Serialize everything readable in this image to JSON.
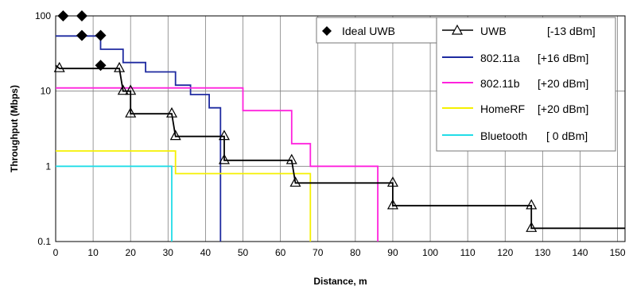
{
  "chart_data": {
    "type": "line",
    "xlabel": "Distance, m",
    "ylabel": "Throughput (Mbps)",
    "x_scale": "linear",
    "y_scale": "log",
    "xlim": [
      0,
      152
    ],
    "ylim": [
      0.1,
      100
    ],
    "x_ticks": [
      "0",
      "10",
      "20",
      "30",
      "40",
      "50",
      "60",
      "70",
      "80",
      "90",
      "100",
      "110",
      "120",
      "130",
      "140",
      "150"
    ],
    "x_tick_values": [
      0,
      10,
      20,
      30,
      40,
      50,
      60,
      70,
      80,
      90,
      100,
      110,
      120,
      130,
      140,
      150
    ],
    "y_ticks": [
      "0.1",
      "1",
      "10",
      "100"
    ],
    "y_tick_values": [
      0.1,
      1,
      10,
      100
    ],
    "grid": true,
    "series": [
      {
        "name": "Ideal UWB",
        "color": "#000000",
        "marker": "diamond",
        "line": false,
        "points": [
          [
            2,
            100
          ],
          [
            7,
            100
          ],
          [
            7,
            55
          ],
          [
            12,
            55
          ],
          [
            12,
            22
          ]
        ]
      },
      {
        "name": "UWB",
        "level": "[-13 dBm]",
        "color": "#000000",
        "marker": "triangle",
        "line": true,
        "points": [
          [
            0,
            22
          ],
          [
            1,
            20
          ],
          [
            17,
            20
          ],
          [
            18,
            10
          ],
          [
            20,
            10
          ],
          [
            20,
            5
          ],
          [
            31,
            5
          ],
          [
            32,
            2.5
          ],
          [
            45,
            2.5
          ],
          [
            45,
            1.2
          ],
          [
            63,
            1.2
          ],
          [
            64,
            0.6
          ],
          [
            90,
            0.6
          ],
          [
            90,
            0.3
          ],
          [
            127,
            0.3
          ],
          [
            127,
            0.15
          ],
          [
            152,
            0.15
          ]
        ],
        "marker_points": [
          [
            1,
            20
          ],
          [
            17,
            20
          ],
          [
            18,
            10
          ],
          [
            20,
            10
          ],
          [
            20,
            5
          ],
          [
            31,
            5
          ],
          [
            32,
            2.5
          ],
          [
            45,
            2.5
          ],
          [
            45,
            1.2
          ],
          [
            63,
            1.2
          ],
          [
            64,
            0.6
          ],
          [
            90,
            0.6
          ],
          [
            90,
            0.3
          ],
          [
            127,
            0.3
          ],
          [
            127,
            0.15
          ]
        ]
      },
      {
        "name": "802.11a",
        "level": "[+16 dBm]",
        "color": "#1e2aa0",
        "marker": "none",
        "line": true,
        "points": [
          [
            0,
            54
          ],
          [
            12,
            54
          ],
          [
            12,
            36
          ],
          [
            18,
            36
          ],
          [
            18,
            24
          ],
          [
            24,
            24
          ],
          [
            24,
            18
          ],
          [
            32,
            18
          ],
          [
            32,
            12
          ],
          [
            36,
            12
          ],
          [
            36,
            9
          ],
          [
            41,
            9
          ],
          [
            41,
            6
          ],
          [
            44,
            6
          ],
          [
            44,
            0.1
          ]
        ]
      },
      {
        "name": "802.11b",
        "level": "[+20 dBm]",
        "color": "#ff22dd",
        "marker": "none",
        "line": true,
        "points": [
          [
            0,
            11
          ],
          [
            50,
            11
          ],
          [
            50,
            5.5
          ],
          [
            63,
            5.5
          ],
          [
            63,
            2
          ],
          [
            68,
            2
          ],
          [
            68,
            1
          ],
          [
            86,
            1
          ],
          [
            86,
            0.1
          ]
        ]
      },
      {
        "name": "HomeRF",
        "level": "[+20 dBm]",
        "color": "#f5f000",
        "marker": "none",
        "line": true,
        "points": [
          [
            0,
            1.6
          ],
          [
            32,
            1.6
          ],
          [
            32,
            0.8
          ],
          [
            68,
            0.8
          ],
          [
            68,
            0.1
          ]
        ]
      },
      {
        "name": "Bluetooth",
        "level": "[ 0 dBm]",
        "color": "#22dde8",
        "marker": "none",
        "line": true,
        "points": [
          [
            0,
            1
          ],
          [
            31,
            1
          ],
          [
            31,
            0.1
          ]
        ]
      }
    ],
    "legend_ideal": {
      "label": "Ideal UWB",
      "placement": "top-center"
    },
    "legend_main": {
      "placement": "top-right",
      "entries": [
        {
          "name": "UWB",
          "level": "[-13 dBm]"
        },
        {
          "name": "802.11a",
          "level": "[+16 dBm]"
        },
        {
          "name": "802.11b",
          "level": "[+20 dBm]"
        },
        {
          "name": "HomeRF",
          "level": "[+20 dBm]"
        },
        {
          "name": "Bluetooth",
          "level": "[ 0 dBm]"
        }
      ]
    }
  }
}
